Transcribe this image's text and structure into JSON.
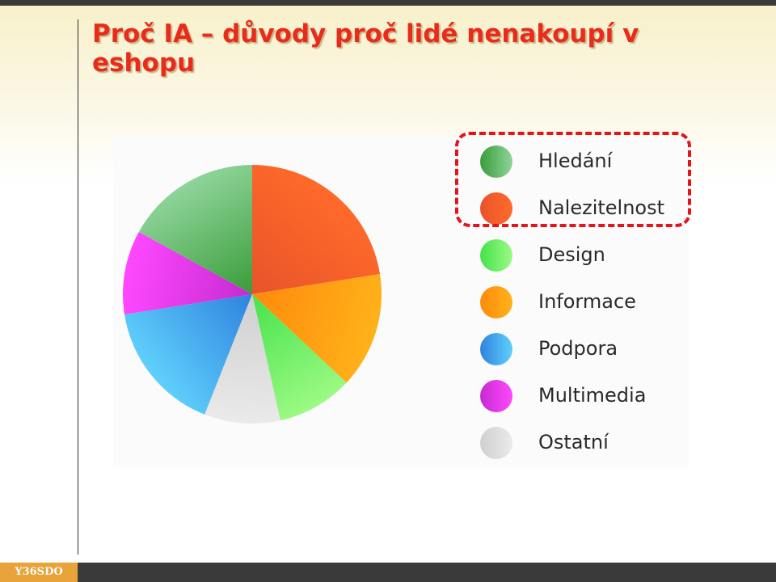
{
  "slide": {
    "title": "Proč IA – důvody proč lidé nenakoupí v eshopu",
    "footer_label": "Y36SDO"
  },
  "chart_data": {
    "type": "pie",
    "title": "",
    "slices": [
      {
        "label": "Nalezitelnost",
        "value": 22.5,
        "color": "#e8542a",
        "color_light": "#ff6a2a"
      },
      {
        "label": "Informace",
        "value": 14.5,
        "color": "#ff8a0c",
        "color_light": "#ffb21a"
      },
      {
        "label": "Design",
        "value": 9.5,
        "color": "#45e24b",
        "color_light": "#9cfa84"
      },
      {
        "label": "Ostatní",
        "value": 9.5,
        "color": "#cfcfcf",
        "color_light": "#eaeaea"
      },
      {
        "label": "Podpora",
        "value": 16.5,
        "color": "#2f82df",
        "color_light": "#5fd0fb"
      },
      {
        "label": "Multimedia",
        "value": 10.5,
        "color": "#c52bd0",
        "color_light": "#ff48ff"
      },
      {
        "label": "Hledání",
        "value": 17.0,
        "color": "#3a9c3a",
        "color_light": "#8fd49a"
      }
    ],
    "legend": [
      {
        "label": "Hledání",
        "color": "#3a9c3a",
        "color_light": "#8fd49a"
      },
      {
        "label": "Nalezitelnost",
        "color": "#e8542a",
        "color_light": "#ff6a2a"
      },
      {
        "label": "Design",
        "color": "#45e24b",
        "color_light": "#9cfa84"
      },
      {
        "label": "Informace",
        "color": "#ff8a0c",
        "color_light": "#ffb21a"
      },
      {
        "label": "Podpora",
        "color": "#2f82df",
        "color_light": "#5fd0fb"
      },
      {
        "label": "Multimedia",
        "color": "#c52bd0",
        "color_light": "#ff48ff"
      },
      {
        "label": "Ostatní",
        "color": "#cfcfcf",
        "color_light": "#eaeaea"
      }
    ],
    "legend_placement": "right",
    "highlighted_legend_items": [
      "Hledání",
      "Nalezitelnost"
    ],
    "highlight_color": "#e3141c"
  }
}
